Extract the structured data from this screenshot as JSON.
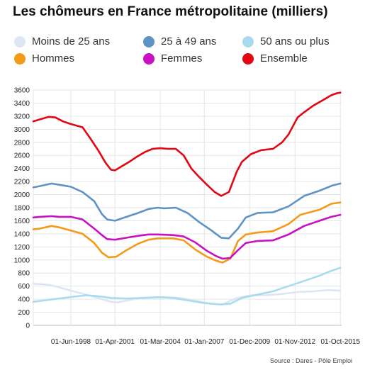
{
  "chart_data": {
    "type": "line",
    "title": "Les chômeurs en France métropolitaine (milliers)",
    "source": "Source : Dares - Pôle Emploi",
    "x_ticks": [
      "01-Jun-1998",
      "01-Apr-2001",
      "01-Mar-2004",
      "01-Jan-2007",
      "01-Dec-2009",
      "01-Nov-2012",
      "01-Oct-2015"
    ],
    "ylim": [
      0,
      3600
    ],
    "y_ticks": [
      0,
      200,
      400,
      600,
      800,
      1000,
      1200,
      1400,
      1600,
      1800,
      2000,
      2200,
      2400,
      2600,
      2800,
      3000,
      3200,
      3400,
      3600
    ],
    "grid": true,
    "legend_position": "top",
    "series": [
      {
        "name": "Moins de 25 ans",
        "color": "#dde6f3",
        "points": [
          [
            "1996-01",
            640
          ],
          [
            "1997-01",
            620
          ],
          [
            "1998-01",
            560
          ],
          [
            "1998-06",
            530
          ],
          [
            "1999-06",
            470
          ],
          [
            "2000-06",
            400
          ],
          [
            "2001-01",
            360
          ],
          [
            "2001-06",
            350
          ],
          [
            "2002-06",
            400
          ],
          [
            "2003-06",
            420
          ],
          [
            "2004-06",
            430
          ],
          [
            "2005-06",
            420
          ],
          [
            "2006-06",
            380
          ],
          [
            "2007-06",
            330
          ],
          [
            "2008-03",
            320
          ],
          [
            "2009-01",
            410
          ],
          [
            "2009-12",
            460
          ],
          [
            "2010-12",
            460
          ],
          [
            "2012-01",
            480
          ],
          [
            "2013-01",
            510
          ],
          [
            "2014-01",
            520
          ],
          [
            "2015-01",
            540
          ],
          [
            "2015-10",
            530
          ]
        ]
      },
      {
        "name": "25 à 49 ans",
        "color": "#5e93c6",
        "points": [
          [
            "1996-01",
            2110
          ],
          [
            "1996-06",
            2130
          ],
          [
            "1997-03",
            2170
          ],
          [
            "1997-09",
            2150
          ],
          [
            "1998-06",
            2120
          ],
          [
            "1999-03",
            2040
          ],
          [
            "1999-12",
            1900
          ],
          [
            "2000-06",
            1700
          ],
          [
            "2000-10",
            1620
          ],
          [
            "2001-04",
            1600
          ],
          [
            "2002-01",
            1660
          ],
          [
            "2002-10",
            1720
          ],
          [
            "2003-06",
            1780
          ],
          [
            "2004-01",
            1800
          ],
          [
            "2004-06",
            1790
          ],
          [
            "2005-03",
            1800
          ],
          [
            "2005-12",
            1720
          ],
          [
            "2006-09",
            1580
          ],
          [
            "2007-06",
            1460
          ],
          [
            "2008-02",
            1340
          ],
          [
            "2008-08",
            1330
          ],
          [
            "2009-03",
            1480
          ],
          [
            "2009-09",
            1650
          ],
          [
            "2010-06",
            1720
          ],
          [
            "2011-06",
            1730
          ],
          [
            "2012-06",
            1820
          ],
          [
            "2013-06",
            1980
          ],
          [
            "2014-06",
            2060
          ],
          [
            "2015-04",
            2140
          ],
          [
            "2015-10",
            2170
          ]
        ]
      },
      {
        "name": "50 ans ou plus",
        "color": "#a9dbef",
        "points": [
          [
            "1996-01",
            360
          ],
          [
            "1997-01",
            390
          ],
          [
            "1998-01",
            420
          ],
          [
            "1999-01",
            450
          ],
          [
            "1999-06",
            460
          ],
          [
            "2000-01",
            450
          ],
          [
            "2001-01",
            420
          ],
          [
            "2002-01",
            410
          ],
          [
            "2003-01",
            420
          ],
          [
            "2004-01",
            430
          ],
          [
            "2005-01",
            420
          ],
          [
            "2006-01",
            380
          ],
          [
            "2007-01",
            340
          ],
          [
            "2008-01",
            320
          ],
          [
            "2008-09",
            330
          ],
          [
            "2009-06",
            420
          ],
          [
            "2010-06",
            470
          ],
          [
            "2011-06",
            520
          ],
          [
            "2012-06",
            600
          ],
          [
            "2013-06",
            680
          ],
          [
            "2014-06",
            760
          ],
          [
            "2015-01",
            820
          ],
          [
            "2015-10",
            880
          ]
        ]
      },
      {
        "name": "Hommes",
        "color": "#f39a17",
        "points": [
          [
            "1996-01",
            1470
          ],
          [
            "1996-06",
            1480
          ],
          [
            "1997-03",
            1520
          ],
          [
            "1997-09",
            1500
          ],
          [
            "1998-06",
            1450
          ],
          [
            "1999-03",
            1400
          ],
          [
            "1999-12",
            1260
          ],
          [
            "2000-06",
            1110
          ],
          [
            "2000-11",
            1040
          ],
          [
            "2001-05",
            1050
          ],
          [
            "2002-01",
            1150
          ],
          [
            "2002-10",
            1250
          ],
          [
            "2003-06",
            1310
          ],
          [
            "2004-01",
            1330
          ],
          [
            "2005-01",
            1330
          ],
          [
            "2005-09",
            1300
          ],
          [
            "2006-06",
            1160
          ],
          [
            "2007-03",
            1050
          ],
          [
            "2007-10",
            990
          ],
          [
            "2008-03",
            960
          ],
          [
            "2008-09",
            1020
          ],
          [
            "2009-03",
            1290
          ],
          [
            "2009-09",
            1390
          ],
          [
            "2010-06",
            1420
          ],
          [
            "2011-06",
            1440
          ],
          [
            "2012-06",
            1550
          ],
          [
            "2013-03",
            1690
          ],
          [
            "2014-06",
            1770
          ],
          [
            "2015-03",
            1860
          ],
          [
            "2015-10",
            1880
          ]
        ]
      },
      {
        "name": "Femmes",
        "color": "#c711c2",
        "points": [
          [
            "1996-01",
            1650
          ],
          [
            "1996-06",
            1660
          ],
          [
            "1997-03",
            1670
          ],
          [
            "1997-09",
            1660
          ],
          [
            "1998-06",
            1660
          ],
          [
            "1999-03",
            1620
          ],
          [
            "1999-12",
            1480
          ],
          [
            "2000-06",
            1380
          ],
          [
            "2000-10",
            1320
          ],
          [
            "2001-04",
            1310
          ],
          [
            "2002-01",
            1340
          ],
          [
            "2002-10",
            1370
          ],
          [
            "2003-06",
            1390
          ],
          [
            "2004-01",
            1390
          ],
          [
            "2005-01",
            1380
          ],
          [
            "2005-09",
            1360
          ],
          [
            "2006-06",
            1270
          ],
          [
            "2007-03",
            1140
          ],
          [
            "2007-10",
            1060
          ],
          [
            "2008-03",
            1020
          ],
          [
            "2008-09",
            1030
          ],
          [
            "2009-03",
            1150
          ],
          [
            "2009-09",
            1260
          ],
          [
            "2010-06",
            1290
          ],
          [
            "2011-06",
            1300
          ],
          [
            "2012-06",
            1390
          ],
          [
            "2013-06",
            1520
          ],
          [
            "2014-06",
            1600
          ],
          [
            "2015-03",
            1660
          ],
          [
            "2015-10",
            1690
          ]
        ]
      },
      {
        "name": "Ensemble",
        "color": "#e30613",
        "points": [
          [
            "1996-01",
            3120
          ],
          [
            "1996-06",
            3150
          ],
          [
            "1997-01",
            3190
          ],
          [
            "1997-06",
            3180
          ],
          [
            "1997-12",
            3120
          ],
          [
            "1998-06",
            3080
          ],
          [
            "1999-03",
            3030
          ],
          [
            "1999-09",
            2860
          ],
          [
            "2000-03",
            2680
          ],
          [
            "2000-09",
            2480
          ],
          [
            "2001-01",
            2380
          ],
          [
            "2001-04",
            2370
          ],
          [
            "2001-09",
            2430
          ],
          [
            "2002-03",
            2500
          ],
          [
            "2002-09",
            2580
          ],
          [
            "2003-03",
            2650
          ],
          [
            "2003-09",
            2700
          ],
          [
            "2004-03",
            2710
          ],
          [
            "2004-09",
            2700
          ],
          [
            "2005-03",
            2700
          ],
          [
            "2005-09",
            2600
          ],
          [
            "2006-03",
            2400
          ],
          [
            "2006-09",
            2270
          ],
          [
            "2007-03",
            2150
          ],
          [
            "2007-09",
            2040
          ],
          [
            "2008-02",
            1980
          ],
          [
            "2008-08",
            2040
          ],
          [
            "2009-02",
            2350
          ],
          [
            "2009-06",
            2500
          ],
          [
            "2010-01",
            2620
          ],
          [
            "2010-09",
            2680
          ],
          [
            "2011-06",
            2700
          ],
          [
            "2012-01",
            2800
          ],
          [
            "2012-06",
            2920
          ],
          [
            "2013-01",
            3180
          ],
          [
            "2013-06",
            3260
          ],
          [
            "2014-01",
            3360
          ],
          [
            "2014-09",
            3450
          ],
          [
            "2015-03",
            3520
          ],
          [
            "2015-07",
            3550
          ],
          [
            "2015-10",
            3560
          ]
        ]
      }
    ]
  }
}
